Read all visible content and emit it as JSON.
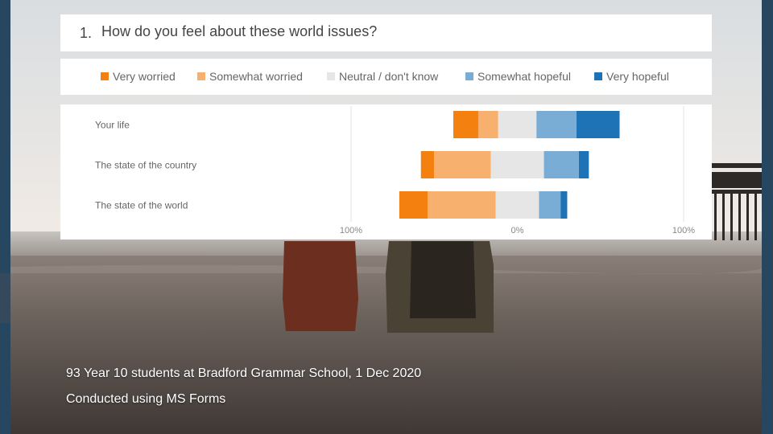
{
  "question": {
    "number": "1.",
    "text": "How do you feel about these world issues?"
  },
  "legend": [
    {
      "label": "Very worried",
      "color": "#f4800f"
    },
    {
      "label": "Somewhat worried",
      "color": "#f8b06f"
    },
    {
      "label": "Neutral / don't know",
      "color": "#e6e6e6"
    },
    {
      "label": "Somewhat hopeful",
      "color": "#7aadd5"
    },
    {
      "label": "Very hopeful",
      "color": "#1e73b7"
    }
  ],
  "chart_data": {
    "type": "bar",
    "orientation": "horizontal-diverging-stacked",
    "categories": [
      "Your life",
      "The state of the country",
      "The state of the world"
    ],
    "series": [
      {
        "name": "Very worried",
        "color": "#f4800f",
        "values": [
          15,
          8,
          17
        ]
      },
      {
        "name": "Somewhat worried",
        "color": "#f8b06f",
        "values": [
          12,
          34,
          41
        ]
      },
      {
        "name": "Neutral / don't know",
        "color": "#e6e6e6",
        "values": [
          23,
          32,
          26
        ]
      },
      {
        "name": "Somewhat hopeful",
        "color": "#7aadd5",
        "values": [
          24,
          21,
          13
        ]
      },
      {
        "name": "Very hopeful",
        "color": "#1e73b7",
        "values": [
          26,
          6,
          4
        ]
      }
    ],
    "neutral_split": "centered",
    "xlim": [
      -100,
      100
    ],
    "xtick_labels": [
      "100%",
      "0%",
      "100%"
    ],
    "grid": false,
    "legend_position": "top"
  },
  "caption": {
    "line1": "93 Year 10 students at Bradford Grammar School, 1 Dec 2020",
    "line2": "Conducted using MS Forms"
  }
}
